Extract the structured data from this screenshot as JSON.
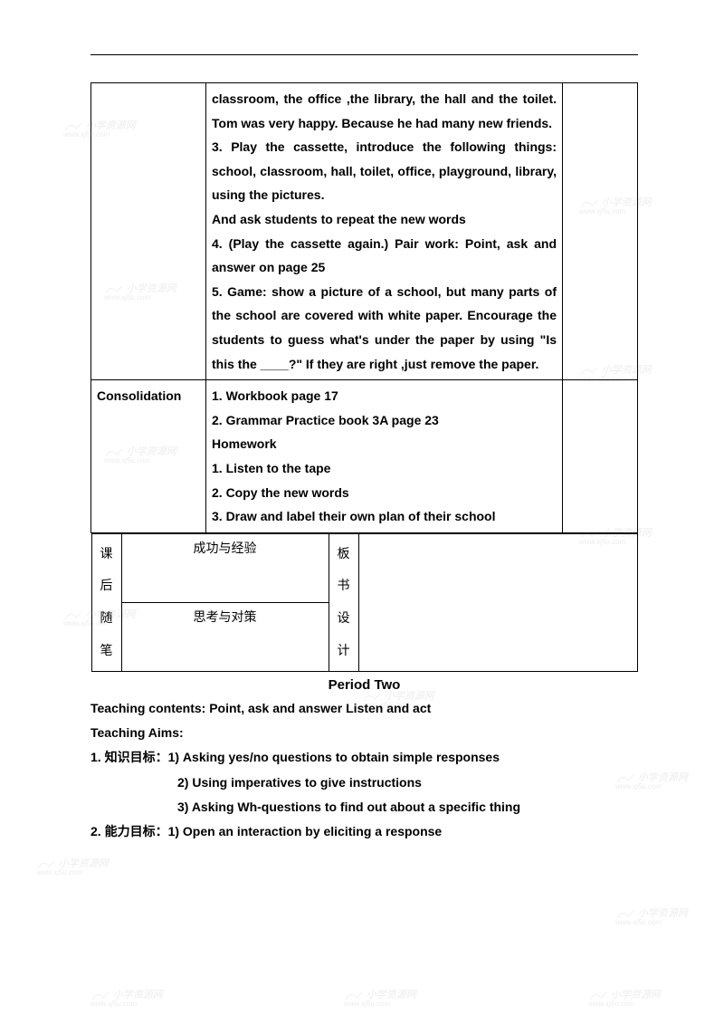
{
  "table": {
    "row1": {
      "left": "",
      "mid": "classroom, the office ,the library, the hall and the toilet. Tom was very happy. Because he had many new friends.\n3. Play the cassette, introduce the following things: school, classroom, hall, toilet, office, playground, library, using the pictures.\nAnd ask students to repeat the new words\n4. (Play the cassette again.) Pair work: Point, ask and answer on page 25\n5. Game: show a picture of a school, but many parts of the school are covered with white paper. Encourage the students to guess what's under the paper by using \"Is this the ____?\" If they are right ,just remove the paper.",
      "right": ""
    },
    "row2": {
      "left": "Consolidation",
      "mid": "1. Workbook page 17\n2. Grammar Practice book 3A page 23\nHomework\n1. Listen to the tape\n2. Copy the new words\n3. Draw and label their own plan of their school",
      "right": ""
    },
    "bottom": {
      "v1": "课后随笔",
      "c1": "成功与经验",
      "c2": "思考与对策",
      "v2": "板书设计",
      "c3": ""
    }
  },
  "periodTitle": "Period Two",
  "teachingContents": "Teaching contents: Point, ask and answer      Listen and act",
  "teachingAimsLabel": "Teaching Aims:",
  "aim1Label": "1.  知识目标：",
  "aim1_1": "1) Asking yes/no questions to obtain simple responses",
  "aim1_2": "2) Using imperatives to give instructions",
  "aim1_3": "3) Asking Wh-questions to find out about a specific thing",
  "aim2Label": "2.  能力目标：",
  "aim2_1": "1) Open an interaction by eliciting a response",
  "watermark": {
    "text1": "小学资源网",
    "text2": "www.xj5u.com"
  }
}
